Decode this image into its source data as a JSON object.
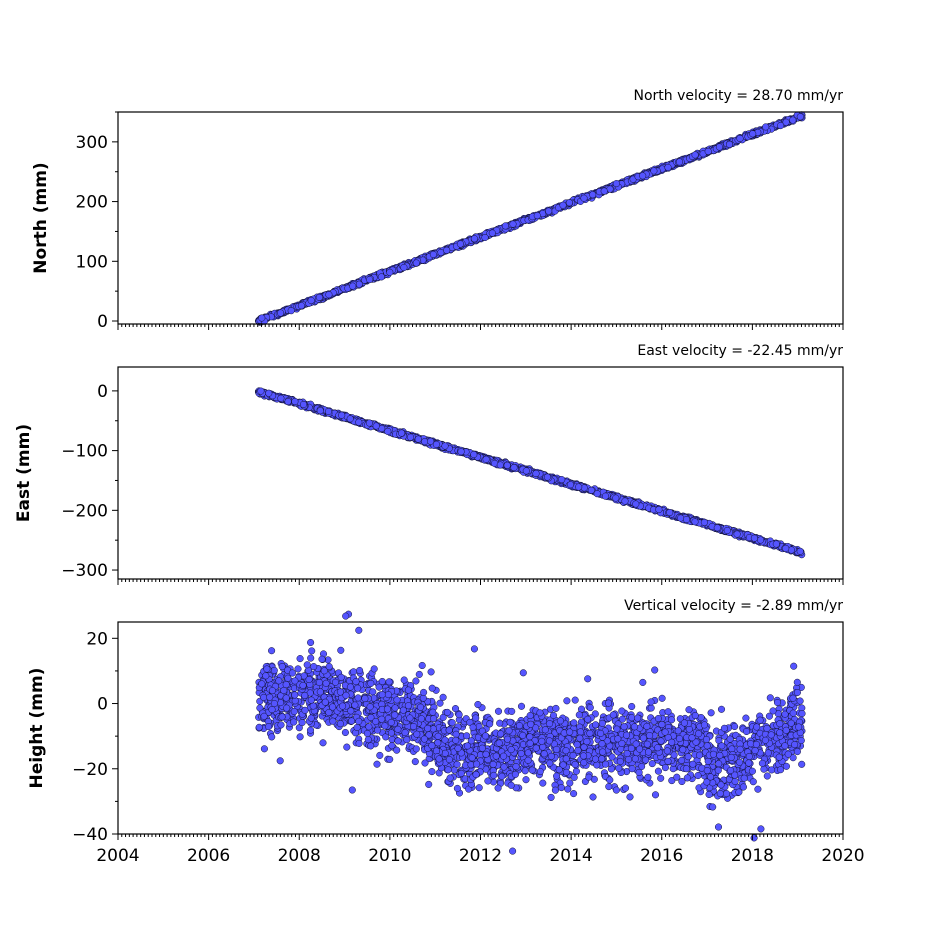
{
  "chart_data": [
    {
      "type": "scatter",
      "panel": "north",
      "title": "North velocity = 28.70 mm/yr",
      "ylabel": "North (mm)",
      "xlim": [
        2004,
        2020
      ],
      "ylim": [
        -5,
        350
      ],
      "yticks": [
        0,
        100,
        200,
        300
      ],
      "ytick_labels": [
        "0",
        "100",
        "200",
        "300"
      ],
      "x_range": [
        2007.1,
        2019.1
      ],
      "trend": [
        [
          2007.1,
          0
        ],
        [
          2019.1,
          344
        ]
      ],
      "scatter_sd": 1.6,
      "color": "#5555ff",
      "edge_color": "#111133"
    },
    {
      "type": "scatter",
      "panel": "east",
      "title": "East velocity = -22.45 mm/yr",
      "ylabel": "East (mm)",
      "xlim": [
        2004,
        2020
      ],
      "ylim": [
        -315,
        40
      ],
      "yticks": [
        0,
        -100,
        -200,
        -300
      ],
      "ytick_labels": [
        "0",
        "−100",
        "−200",
        "−300"
      ],
      "x_range": [
        2007.1,
        2019.1
      ],
      "trend": [
        [
          2007.1,
          -1
        ],
        [
          2019.1,
          -271
        ]
      ],
      "scatter_sd": 1.6,
      "color": "#5555ff",
      "edge_color": "#111133"
    },
    {
      "type": "scatter",
      "panel": "height",
      "title": "Vertical velocity = -2.89 mm/yr",
      "ylabel": "Height (mm)",
      "xlim": [
        2004,
        2020
      ],
      "ylim": [
        -40,
        25
      ],
      "yticks": [
        20,
        0,
        -20,
        -40
      ],
      "ytick_labels": [
        "20",
        "0",
        "−20",
        "−40"
      ],
      "x_range": [
        2007.1,
        2019.1
      ],
      "trend_segments": [
        {
          "x": [
            2007.1,
            2008.5
          ],
          "y": [
            2,
            3
          ]
        },
        {
          "x": [
            2008.5,
            2010.6
          ],
          "y": [
            3,
            -5
          ]
        },
        {
          "x": [
            2010.6,
            2011.3
          ],
          "y": [
            -5,
            -14
          ]
        },
        {
          "x": [
            2011.3,
            2016.8
          ],
          "y": [
            -14,
            -11
          ]
        },
        {
          "x": [
            2016.8,
            2017.2
          ],
          "y": [
            -11,
            -20
          ]
        },
        {
          "x": [
            2017.2,
            2019.1
          ],
          "y": [
            -20,
            -6
          ]
        }
      ],
      "scatter_sd": 5.5,
      "color": "#5555ff",
      "edge_color": "#111133"
    }
  ],
  "x_axis": {
    "ticks": [
      2004,
      2006,
      2008,
      2010,
      2012,
      2014,
      2016,
      2018,
      2020
    ],
    "tick_labels": [
      "2004",
      "2006",
      "2008",
      "2010",
      "2012",
      "2014",
      "2016",
      "2018",
      "2020"
    ]
  }
}
